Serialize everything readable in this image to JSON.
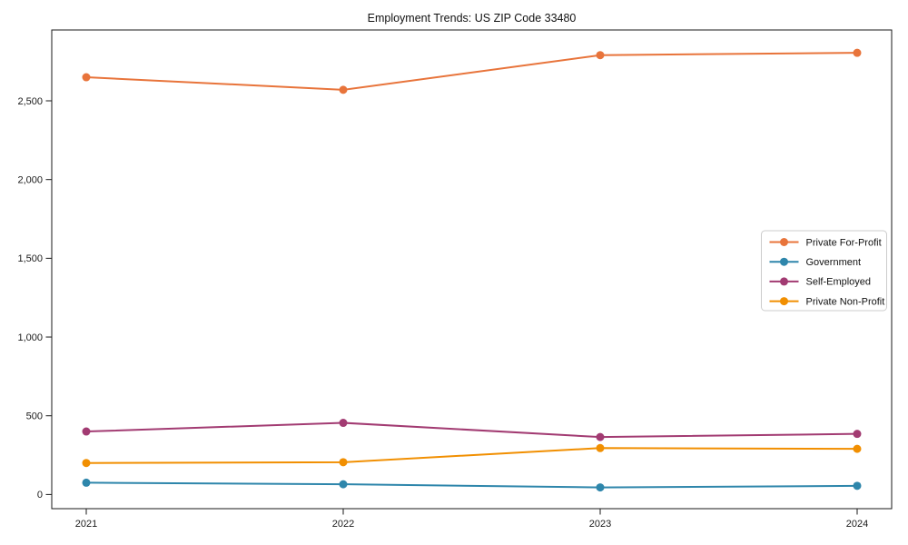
{
  "chart": {
    "title": "Employment Trends: US ZIP Code 33480"
  },
  "chart_data": {
    "type": "line",
    "title": "Employment Trends: US ZIP Code 33480",
    "xlabel": "",
    "ylabel": "",
    "categories": [
      "2021",
      "2022",
      "2023",
      "2024"
    ],
    "series": [
      {
        "name": "Private For-Profit",
        "color": "#E8743B",
        "values": [
          2650,
          2570,
          2790,
          2805
        ]
      },
      {
        "name": "Government",
        "color": "#2E86AB",
        "values": [
          75,
          65,
          45,
          55
        ]
      },
      {
        "name": "Self-Employed",
        "color": "#A23B72",
        "values": [
          400,
          455,
          365,
          385
        ]
      },
      {
        "name": "Private Non-Profit",
        "color": "#F18F01",
        "values": [
          200,
          205,
          295,
          290
        ]
      }
    ],
    "ylim": [
      -90,
      2950
    ],
    "yticks": [
      0,
      500,
      1000,
      1500,
      2000,
      2500
    ],
    "ytick_labels": [
      "0",
      "500",
      "1,000",
      "1,500",
      "2,000",
      "2,500"
    ],
    "grid": false,
    "legend_position": "center-right",
    "axis_color": "#1a1a1a",
    "legend_border_color": "#cccccc",
    "legend_bg_color": "#ffffff",
    "marker": "circle"
  }
}
